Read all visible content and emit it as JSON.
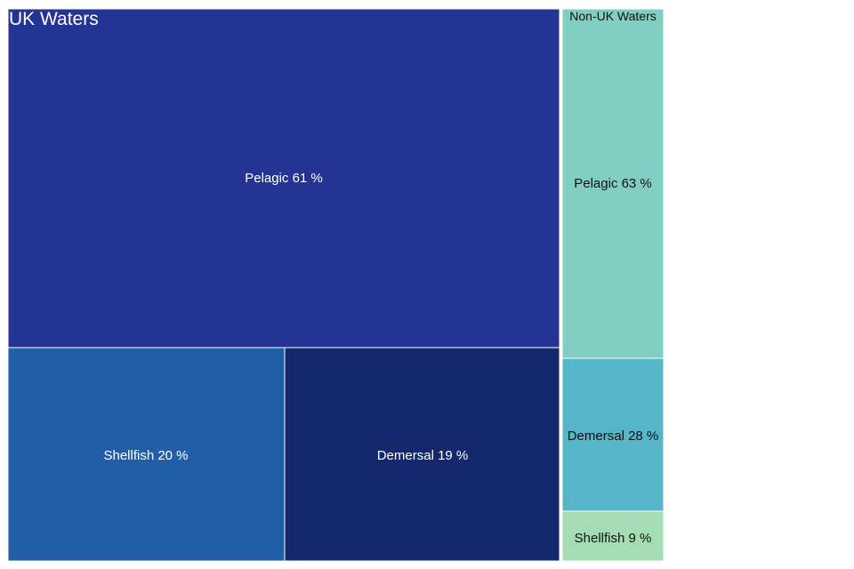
{
  "chart_data": {
    "type": "treemap",
    "title": "",
    "groups": [
      {
        "name": "UK Waters",
        "share": 0.842,
        "items": [
          {
            "category": "Pelagic",
            "percent": 61,
            "label": "Pelagic 61 %",
            "color": "#253494"
          },
          {
            "category": "Shellfish",
            "percent": 20,
            "label": "Shellfish 20 %",
            "color": "#225ea8"
          },
          {
            "category": "Demersal",
            "percent": 19,
            "label": "Demersal 19 %",
            "color": "#15286e"
          }
        ]
      },
      {
        "name": "Non-UK Waters",
        "share": 0.158,
        "items": [
          {
            "category": "Pelagic",
            "percent": 63,
            "label": "Pelagic 63 %",
            "color": "#80cfc2"
          },
          {
            "category": "Demersal",
            "percent": 28,
            "label": "Demersal 28 %",
            "color": "#56b5c8"
          },
          {
            "category": "Shellfish",
            "percent": 9,
            "label": "Shellfish 9 %",
            "color": "#a4dcb4"
          }
        ]
      }
    ]
  }
}
